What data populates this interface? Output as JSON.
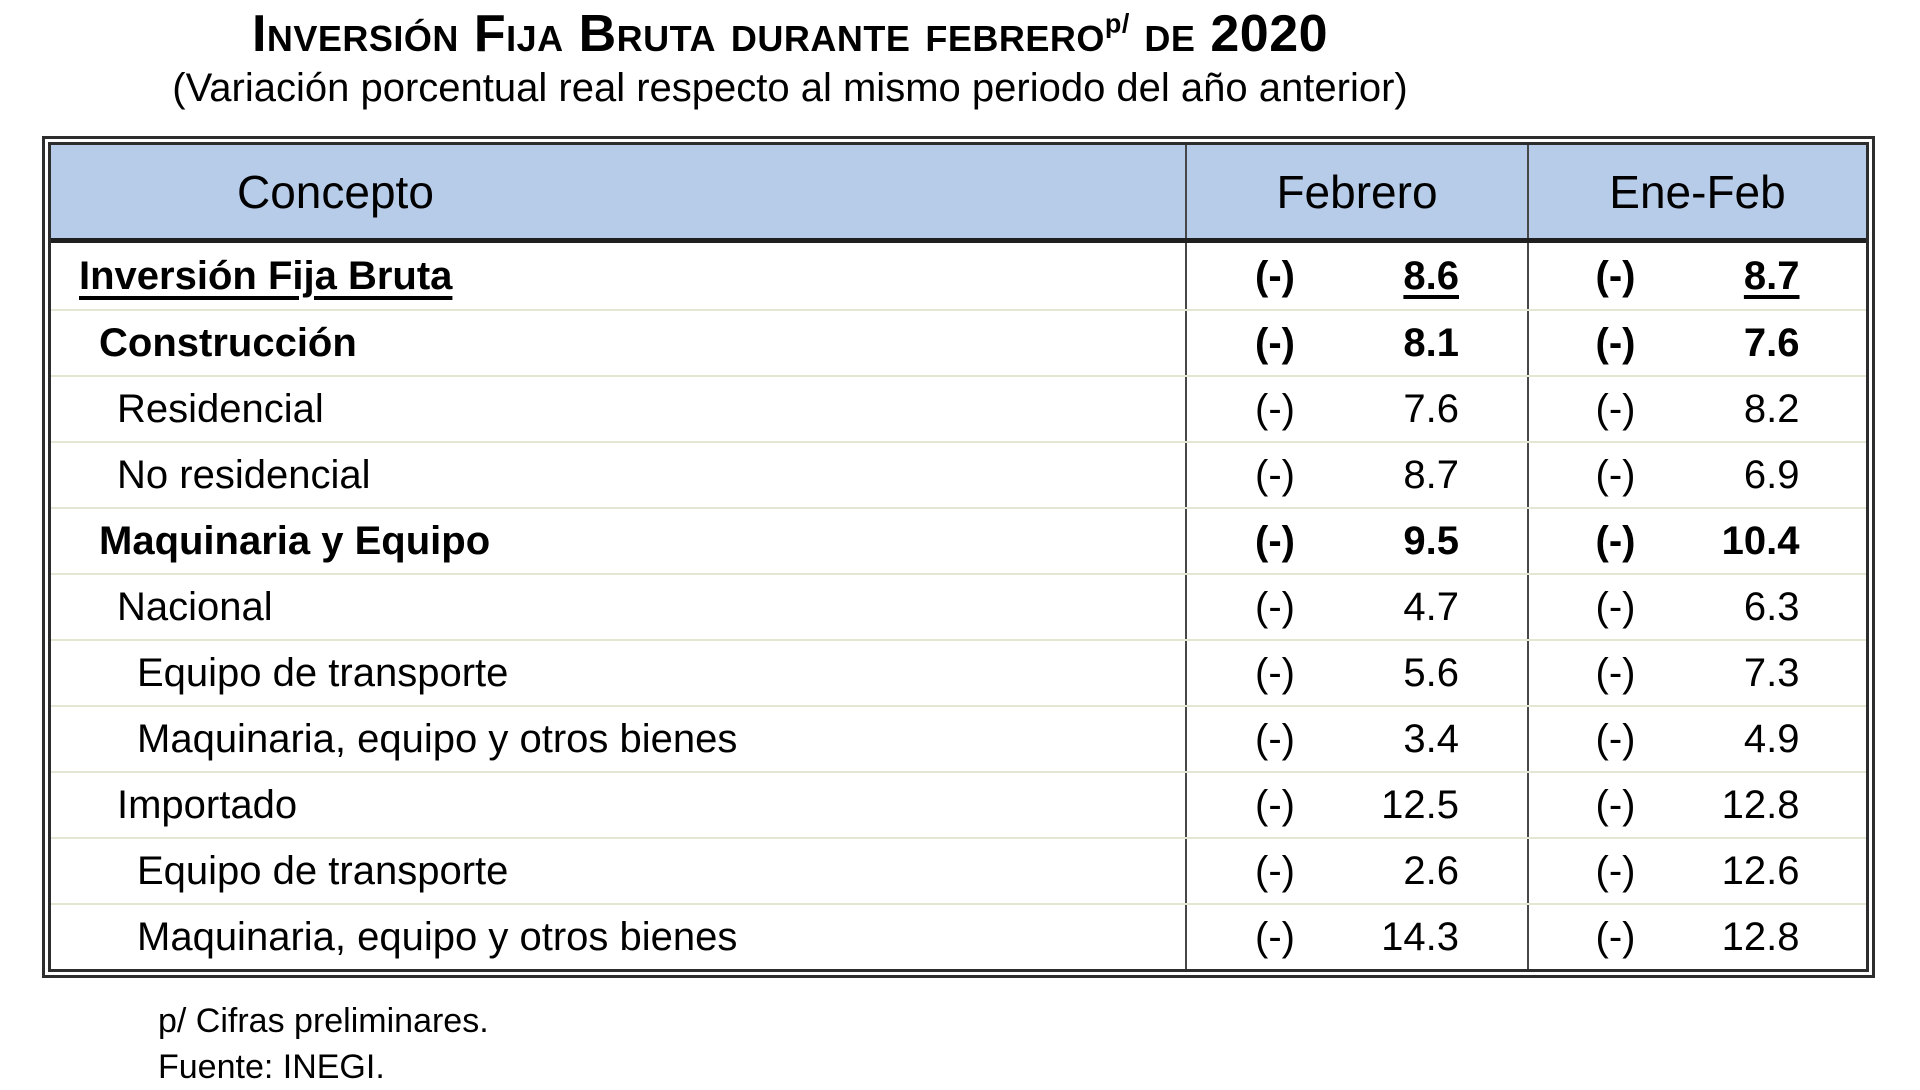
{
  "title": {
    "text": "Inversión Fija Bruta durante febrero",
    "superscript": "p/",
    "suffix": "de 2020"
  },
  "subtitle": "(Variación porcentual real respecto al mismo periodo del año anterior)",
  "table": {
    "columns": {
      "concepto": "Concepto",
      "febrero": "Febrero",
      "enefeb": "Ene-Feb"
    },
    "rows": [
      {
        "concepto": "Inversión Fija Bruta",
        "feb_sign": "(-)",
        "feb": "8.6",
        "ene_sign": "(-)",
        "ene": "8.7"
      },
      {
        "concepto": "Construcción",
        "feb_sign": "(-)",
        "feb": "8.1",
        "ene_sign": "(-)",
        "ene": "7.6"
      },
      {
        "concepto": "Residencial",
        "feb_sign": "(-)",
        "feb": "7.6",
        "ene_sign": "(-)",
        "ene": "8.2"
      },
      {
        "concepto": "No residencial",
        "feb_sign": "(-)",
        "feb": "8.7",
        "ene_sign": "(-)",
        "ene": "6.9"
      },
      {
        "concepto": "Maquinaria y Equipo",
        "feb_sign": "(-)",
        "feb": "9.5",
        "ene_sign": "(-)",
        "ene": "10.4"
      },
      {
        "concepto": "Nacional",
        "feb_sign": "(-)",
        "feb": "4.7",
        "ene_sign": "(-)",
        "ene": "6.3"
      },
      {
        "concepto": "Equipo de transporte",
        "feb_sign": "(-)",
        "feb": "5.6",
        "ene_sign": "(-)",
        "ene": "7.3"
      },
      {
        "concepto": "Maquinaria, equipo y otros bienes",
        "feb_sign": "(-)",
        "feb": "3.4",
        "ene_sign": "(-)",
        "ene": "4.9"
      },
      {
        "concepto": "Importado",
        "feb_sign": "(-)",
        "feb": "12.5",
        "ene_sign": "(-)",
        "ene": "12.8"
      },
      {
        "concepto": "Equipo de transporte",
        "feb_sign": "(-)",
        "feb": "2.6",
        "ene_sign": "(-)",
        "ene": "12.6"
      },
      {
        "concepto": "Maquinaria, equipo y otros bienes",
        "feb_sign": "(-)",
        "feb": "14.3",
        "ene_sign": "(-)",
        "ene": "12.8"
      }
    ]
  },
  "footnotes": {
    "preliminary": "p/ Cifras preliminares.",
    "source": "Fuente: INEGI."
  },
  "colors": {
    "header_bg": "#b7cce9",
    "row_divider": "#e4e6d3",
    "outer_border": "#2d2d2d",
    "column_divider": "#474747",
    "text": "#000000"
  }
}
